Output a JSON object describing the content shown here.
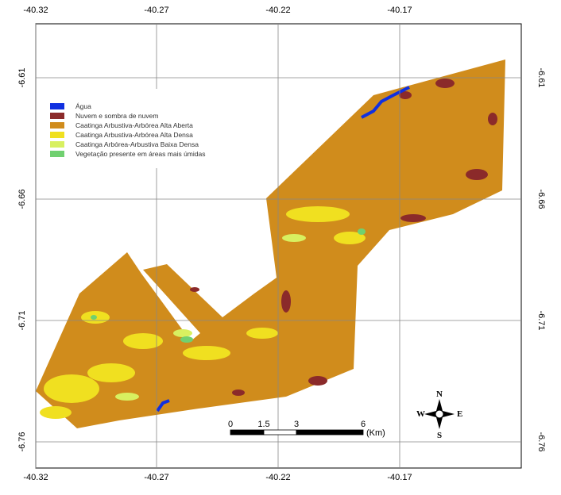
{
  "map": {
    "longitude_ticks": [
      "-40.32",
      "-40.27",
      "-40.22",
      "-40.17"
    ],
    "latitude_ticks": [
      "-6.61",
      "-6.66",
      "-6.71",
      "-6.76"
    ],
    "legend": [
      {
        "label": "Água",
        "color": "#1030e0"
      },
      {
        "label": "Nuvem e sombra de nuvem",
        "color": "#8b2a2a"
      },
      {
        "label": "Caatinga Arbustiva-Arbórea Alta Aberta",
        "color": "#d08c1c"
      },
      {
        "label": "Caatinga Arbustiva-Arbórea Alta Densa",
        "color": "#f0e020"
      },
      {
        "label": "Caatinga Arbórea-Arbustiva Baixa Densa",
        "color": "#d8f060"
      },
      {
        "label": "Vegetação presente em áreas mais úmidas",
        "color": "#70d070"
      }
    ],
    "scale_bar": {
      "labels": [
        "0",
        "1.5",
        "3",
        "6"
      ],
      "unit": "(Km)"
    },
    "compass": {
      "north": "N",
      "south": "S",
      "east": "E",
      "west": "W"
    }
  }
}
